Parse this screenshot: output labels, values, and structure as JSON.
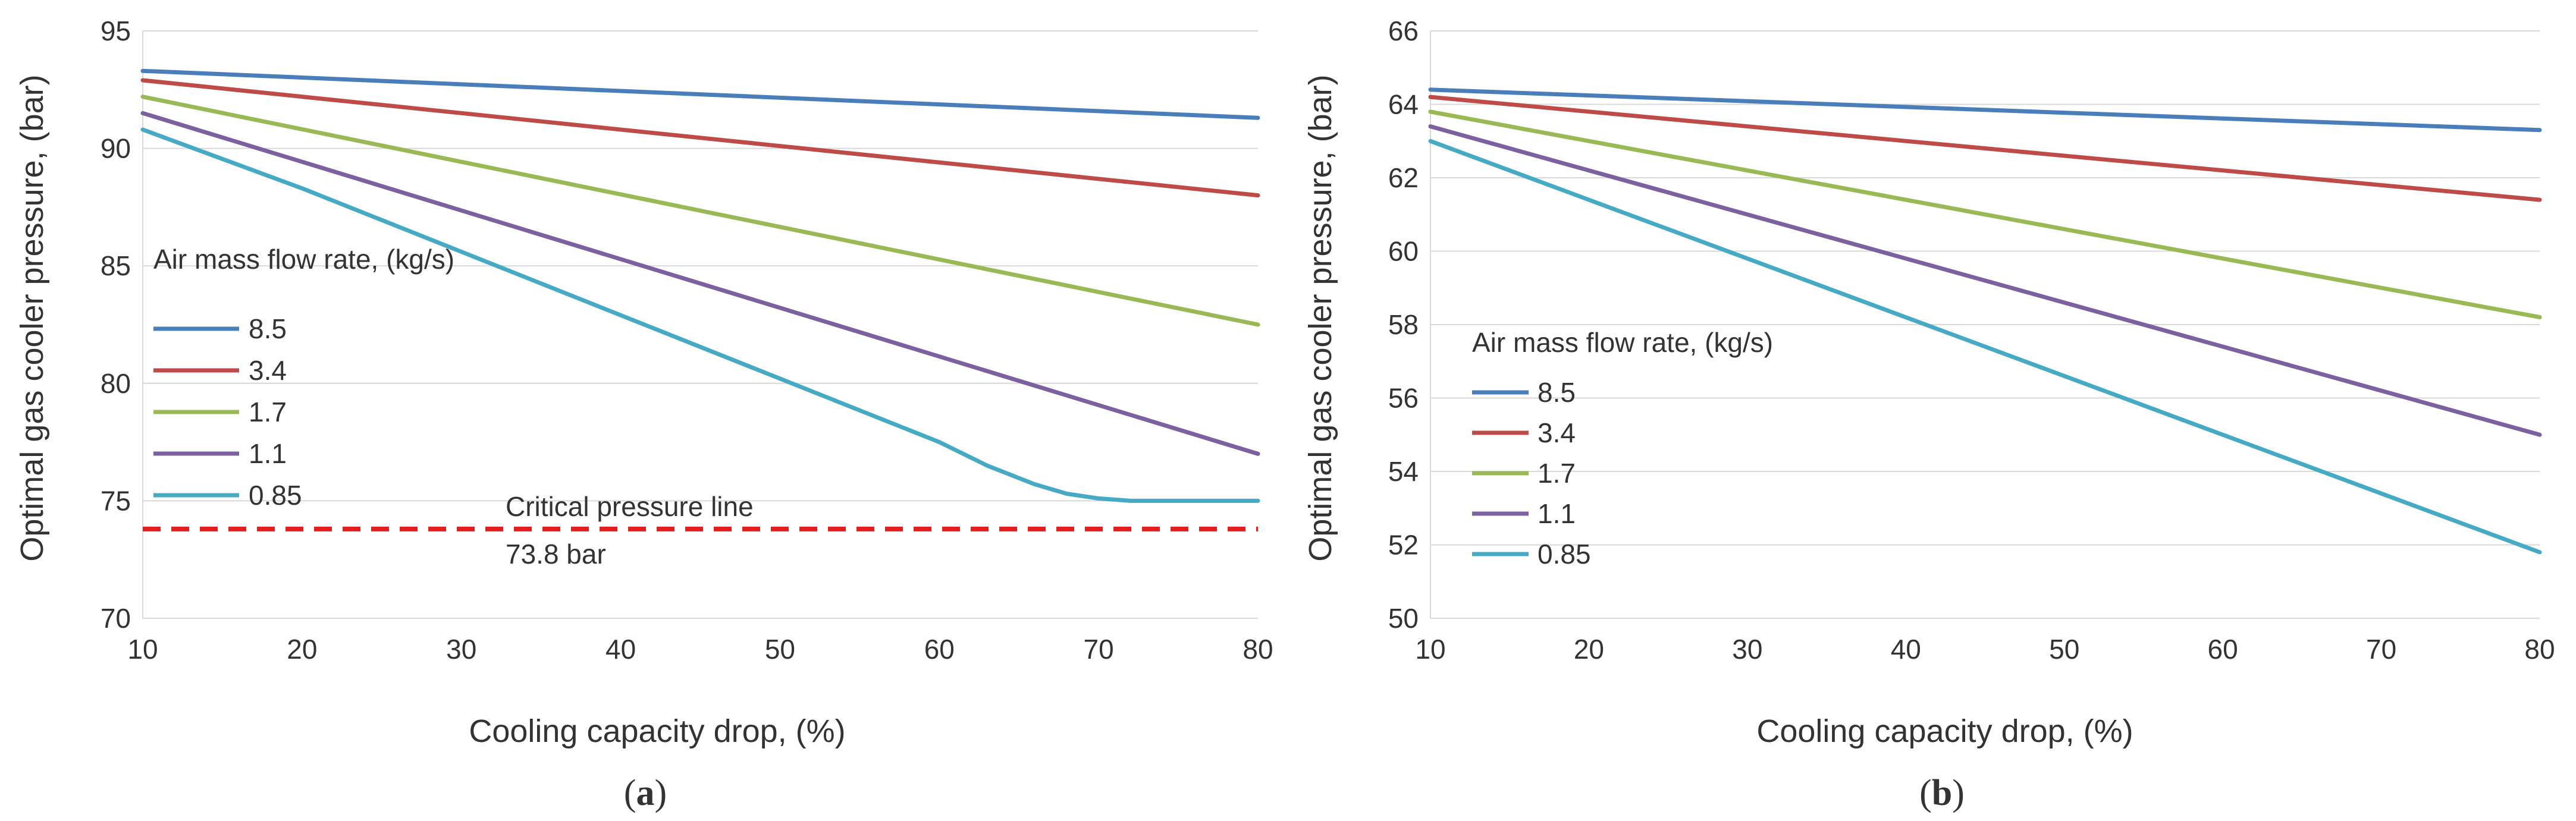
{
  "chart_data": [
    {
      "panel": "a",
      "panel_label": "a",
      "type": "line",
      "xlabel": "Cooling capacity drop, (%)",
      "ylabel": "Optimal gas cooler pressure, (bar)",
      "xlim": [
        10,
        80
      ],
      "ylim": [
        70,
        95
      ],
      "xticks": [
        10,
        20,
        30,
        40,
        50,
        60,
        70,
        80
      ],
      "yticks": [
        70,
        75,
        80,
        85,
        90,
        95
      ],
      "legend_title": "Air mass flow rate, (kg/s)",
      "series": [
        {
          "name": "8.5",
          "color": "#4a7ebb",
          "x": [
            10,
            80
          ],
          "y": [
            93.3,
            91.3
          ]
        },
        {
          "name": "3.4",
          "color": "#be4b48",
          "x": [
            10,
            80
          ],
          "y": [
            92.9,
            88.0
          ]
        },
        {
          "name": "1.7",
          "color": "#98b954",
          "x": [
            10,
            80
          ],
          "y": [
            92.2,
            82.5
          ]
        },
        {
          "name": "1.1",
          "color": "#7d60a0",
          "x": [
            10,
            80
          ],
          "y": [
            91.5,
            77.0
          ]
        },
        {
          "name": "0.85",
          "color": "#46aac5",
          "x": [
            10,
            20,
            30,
            40,
            50,
            60,
            63,
            66,
            68,
            70,
            72,
            75,
            80
          ],
          "y": [
            90.8,
            88.3,
            85.6,
            82.9,
            80.2,
            77.5,
            76.5,
            75.7,
            75.3,
            75.1,
            75.0,
            75.0,
            75.0
          ]
        }
      ],
      "reference_line": {
        "y": 73.8,
        "color": "#e02020",
        "label_line1": "Critical pressure line",
        "label_line2": "73.8 bar"
      }
    },
    {
      "panel": "b",
      "panel_label": "b",
      "type": "line",
      "xlabel": "Cooling capacity drop, (%)",
      "ylabel": "Optimal gas cooler pressure, (bar)",
      "xlim": [
        10,
        80
      ],
      "ylim": [
        50,
        66
      ],
      "xticks": [
        10,
        20,
        30,
        40,
        50,
        60,
        70,
        80
      ],
      "yticks": [
        50,
        52,
        54,
        56,
        58,
        60,
        62,
        64,
        66
      ],
      "legend_title": "Air mass flow rate, (kg/s)",
      "series": [
        {
          "name": "8.5",
          "color": "#4a7ebb",
          "x": [
            10,
            80
          ],
          "y": [
            64.4,
            63.3
          ]
        },
        {
          "name": "3.4",
          "color": "#be4b48",
          "x": [
            10,
            80
          ],
          "y": [
            64.2,
            61.4
          ]
        },
        {
          "name": "1.7",
          "color": "#98b954",
          "x": [
            10,
            80
          ],
          "y": [
            63.8,
            58.2
          ]
        },
        {
          "name": "1.1",
          "color": "#7d60a0",
          "x": [
            10,
            80
          ],
          "y": [
            63.4,
            55.0
          ]
        },
        {
          "name": "0.85",
          "color": "#46aac5",
          "x": [
            10,
            80
          ],
          "y": [
            63.0,
            51.8
          ]
        }
      ]
    }
  ]
}
